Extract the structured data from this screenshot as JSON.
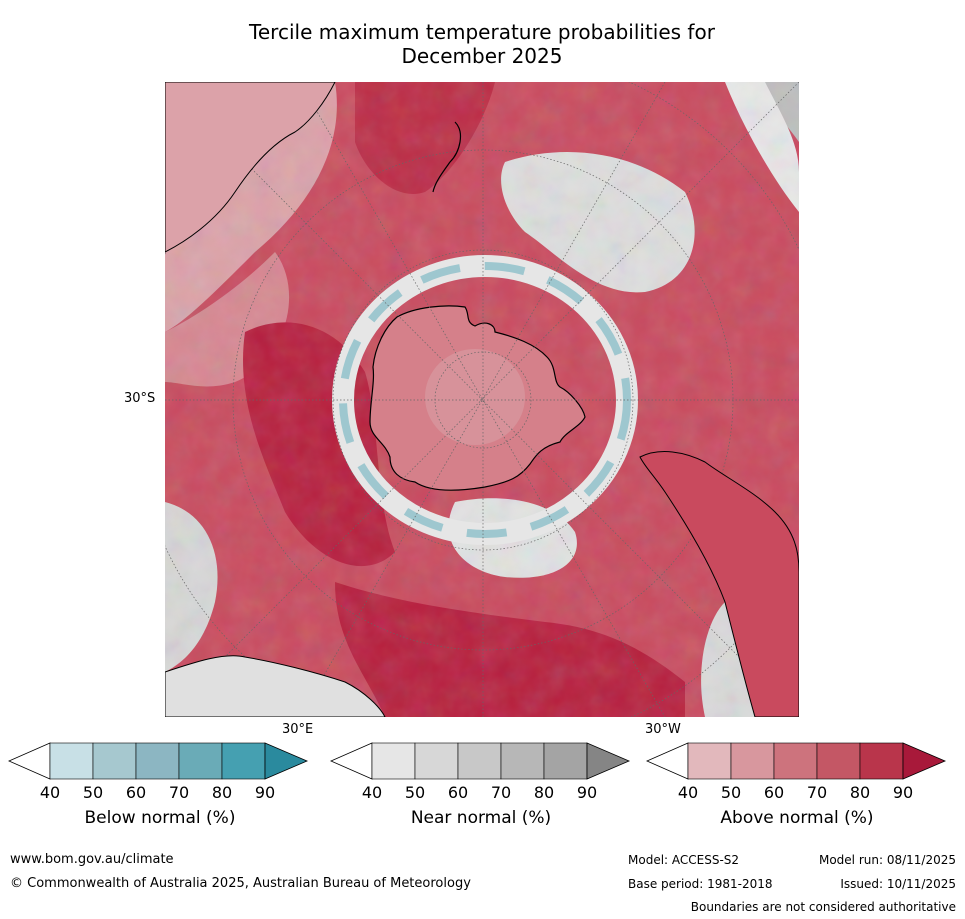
{
  "title_line1": "Tercile maximum temperature probabilities for",
  "title_line2": "December 2025",
  "chart_data": {
    "type": "heatmap",
    "projection": "south-polar stereographic",
    "variable": "maximum temperature tercile probability",
    "period": "December 2025",
    "lat_label": "30°S",
    "lon_labels": [
      "30°E",
      "30°W"
    ],
    "legends": [
      {
        "name": "Below normal (%)",
        "ticks": [
          "40",
          "50",
          "60",
          "70",
          "80",
          "90"
        ],
        "colors": [
          "#ffffff",
          "#c8e0e6",
          "#a6c8cf",
          "#8cb6c2",
          "#6aabb7",
          "#45a0b1",
          "#2a8a9e"
        ]
      },
      {
        "name": "Near normal (%)",
        "ticks": [
          "40",
          "50",
          "60",
          "70",
          "80",
          "90"
        ],
        "colors": [
          "#ffffff",
          "#e6e6e6",
          "#d7d7d7",
          "#c8c8c8",
          "#b7b7b7",
          "#a4a4a4",
          "#858585"
        ]
      },
      {
        "name": "Above normal (%)",
        "ticks": [
          "40",
          "50",
          "60",
          "70",
          "80",
          "90"
        ],
        "colors": [
          "#ffffff",
          "#e2b8bc",
          "#d8979e",
          "#cd737d",
          "#c45765",
          "#b9354b",
          "#a8193a"
        ]
      }
    ]
  },
  "footer": {
    "website": "www.bom.gov.au/climate",
    "copyright": "© Commonwealth of Australia 2025, Australian Bureau of Meteorology",
    "model": "Model: ACCESS-S2",
    "model_run": "Model run: 08/11/2025",
    "base_period": "Base period: 1981-2018",
    "issued": "Issued: 10/11/2025",
    "disclaimer": "Boundaries are not considered authoritative"
  }
}
